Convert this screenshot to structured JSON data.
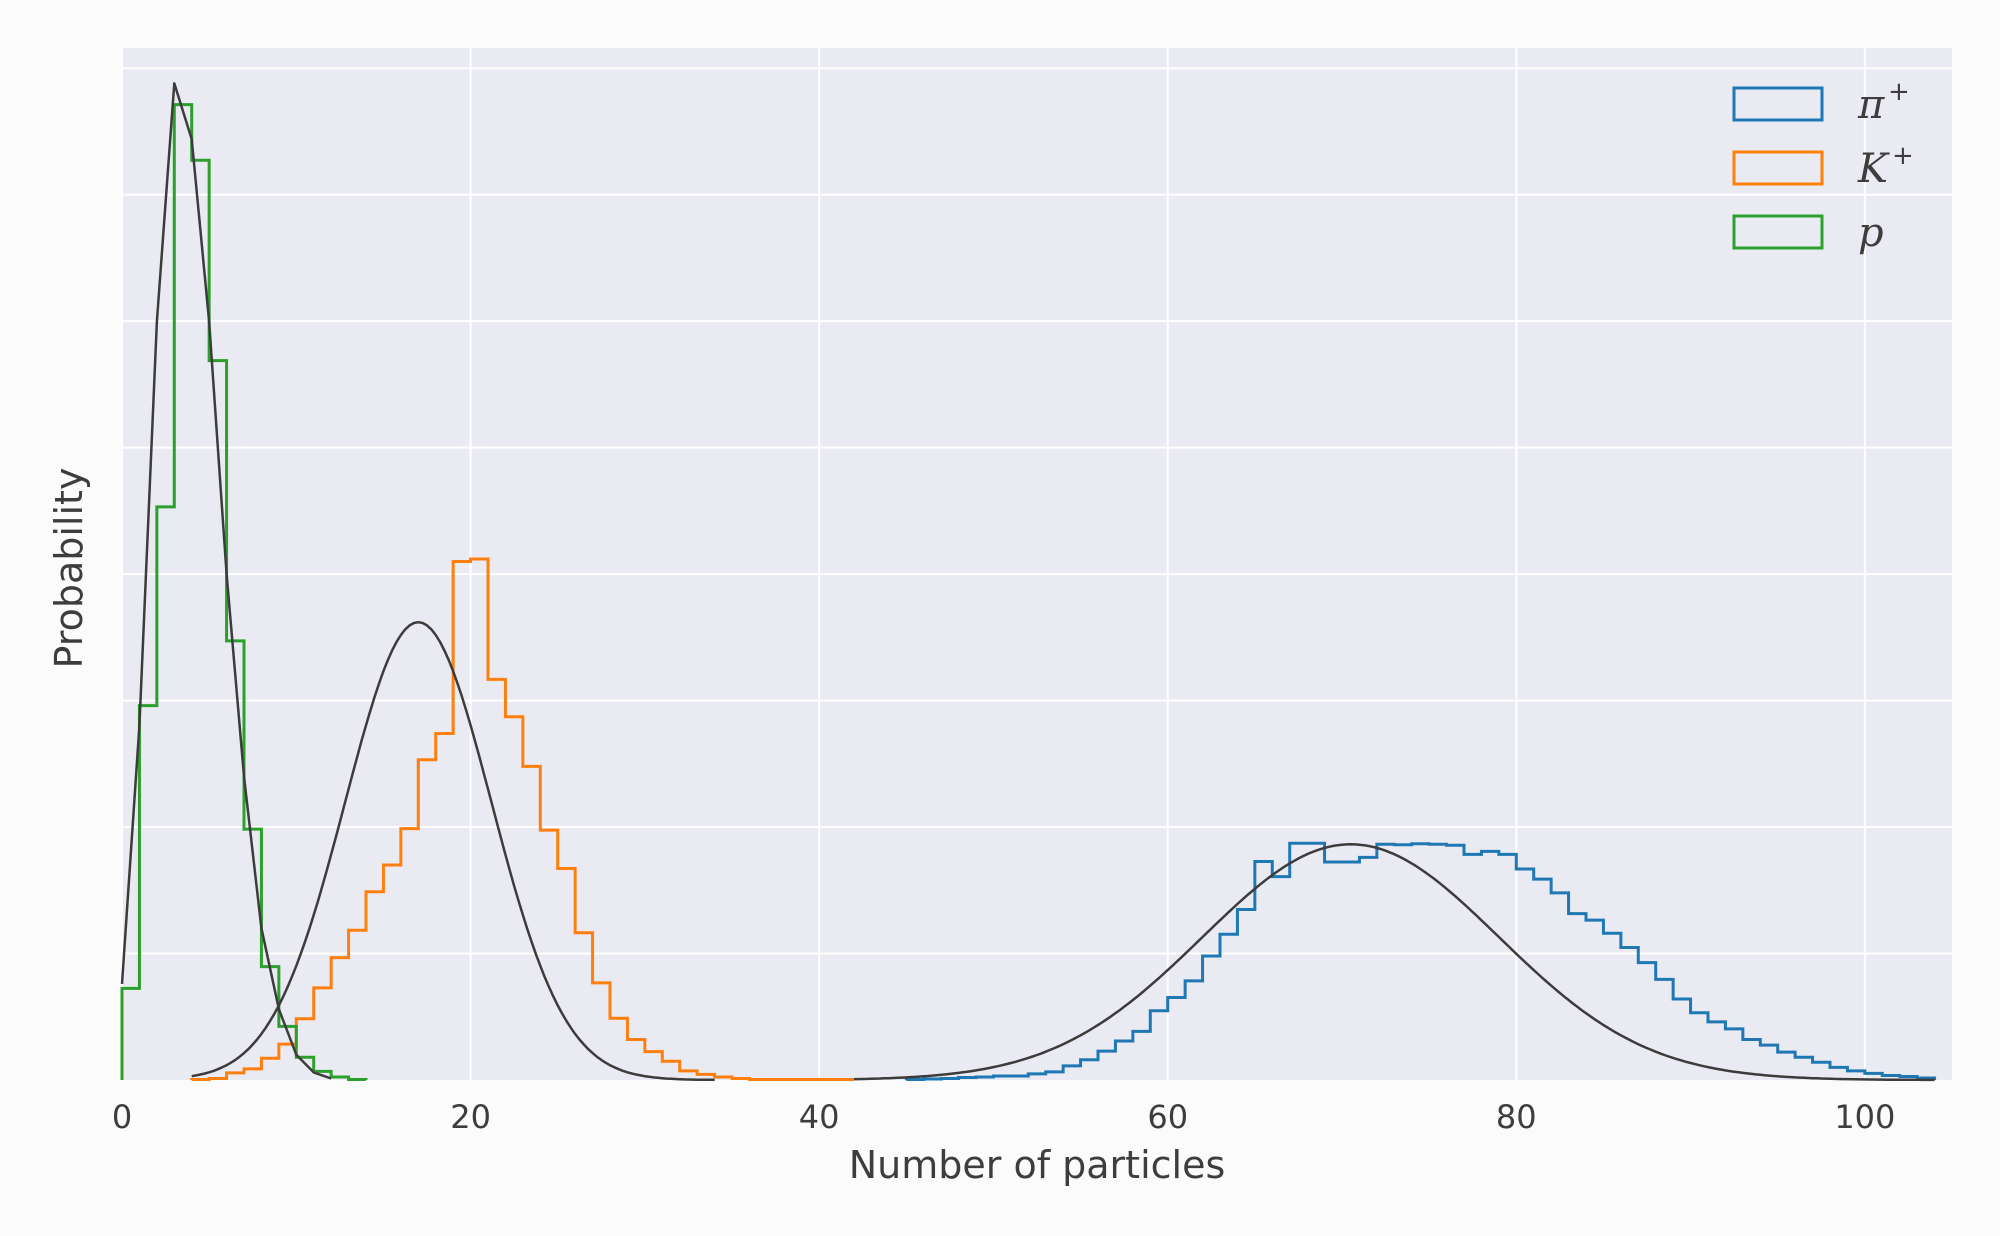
{
  "chart_data": {
    "type": "histogram",
    "xlabel": "Number of particles",
    "ylabel": "Probability",
    "xlim": [
      0,
      105
    ],
    "ylim": [
      0,
      0.204
    ],
    "grid": true,
    "y_tick_labels_shown": false,
    "x_ticks": [
      0,
      20,
      40,
      60,
      80,
      100
    ],
    "y_gridlines": [
      0.025,
      0.05,
      0.075,
      0.1,
      0.125,
      0.15,
      0.175,
      0.2
    ],
    "legend_position": "top-right",
    "series": [
      {
        "name": "π",
        "sup": "+",
        "color": "#1f77b4",
        "bin_start": 45,
        "bin_width": 1,
        "values": [
          0.0001,
          0.0002,
          0.0003,
          0.0005,
          0.0006,
          0.0008,
          0.0008,
          0.0012,
          0.0016,
          0.0028,
          0.004,
          0.0057,
          0.0077,
          0.0096,
          0.0137,
          0.0163,
          0.0196,
          0.0245,
          0.0288,
          0.0337,
          0.0432,
          0.0402,
          0.0468,
          0.0468,
          0.0431,
          0.0431,
          0.044,
          0.0466,
          0.0465,
          0.0467,
          0.0466,
          0.0464,
          0.0446,
          0.0452,
          0.0446,
          0.0417,
          0.0397,
          0.037,
          0.0329,
          0.0316,
          0.029,
          0.0262,
          0.0232,
          0.0199,
          0.016,
          0.0133,
          0.0115,
          0.0101,
          0.008,
          0.0069,
          0.0055,
          0.0045,
          0.0035,
          0.0025,
          0.0018,
          0.0013,
          0.0009,
          0.0007,
          0.0004
        ]
      },
      {
        "name": "K",
        "sup": "+",
        "color": "#ff7f0e",
        "bin_start": 4,
        "bin_width": 1,
        "values": [
          0.0001,
          0.0003,
          0.0014,
          0.0022,
          0.0043,
          0.0071,
          0.0121,
          0.0182,
          0.0242,
          0.0296,
          0.0372,
          0.0425,
          0.0497,
          0.0633,
          0.0685,
          0.1025,
          0.103,
          0.0792,
          0.0718,
          0.062,
          0.0494,
          0.0418,
          0.0291,
          0.0192,
          0.0122,
          0.008,
          0.0056,
          0.0037,
          0.0018,
          0.0011,
          0.0006,
          0.0003,
          0.0001,
          0.0001,
          0.0001,
          0.0001,
          0.0001,
          0.0001
        ]
      },
      {
        "name": "p",
        "sup": "",
        "color": "#2ca02c",
        "bin_start": 0,
        "bin_width": 1,
        "values": [
          0.0181,
          0.074,
          0.1133,
          0.1928,
          0.1818,
          0.1422,
          0.0868,
          0.0496,
          0.0224,
          0.0106,
          0.0045,
          0.0017,
          0.0006,
          0.0001
        ]
      }
    ],
    "fit_curves": [
      {
        "color": "#3c3c3c",
        "mu": 70.5,
        "sigma": 8.5,
        "amp": 0.0466,
        "range": [
          42,
          104
        ]
      },
      {
        "color": "#3c3c3c",
        "mu": 17,
        "sigma": 4.2,
        "amp": 0.0905,
        "range": [
          4,
          34
        ]
      },
      {
        "color": "#3c3c3c",
        "points": [
          [
            0,
            0.019
          ],
          [
            1,
            0.07
          ],
          [
            2,
            0.15
          ],
          [
            3,
            0.197
          ],
          [
            4,
            0.186
          ],
          [
            5,
            0.15
          ],
          [
            6,
            0.1
          ],
          [
            7,
            0.06
          ],
          [
            8,
            0.03
          ],
          [
            9,
            0.014
          ],
          [
            10,
            0.005
          ],
          [
            11,
            0.0015
          ],
          [
            12,
            0.0003
          ]
        ]
      }
    ]
  }
}
